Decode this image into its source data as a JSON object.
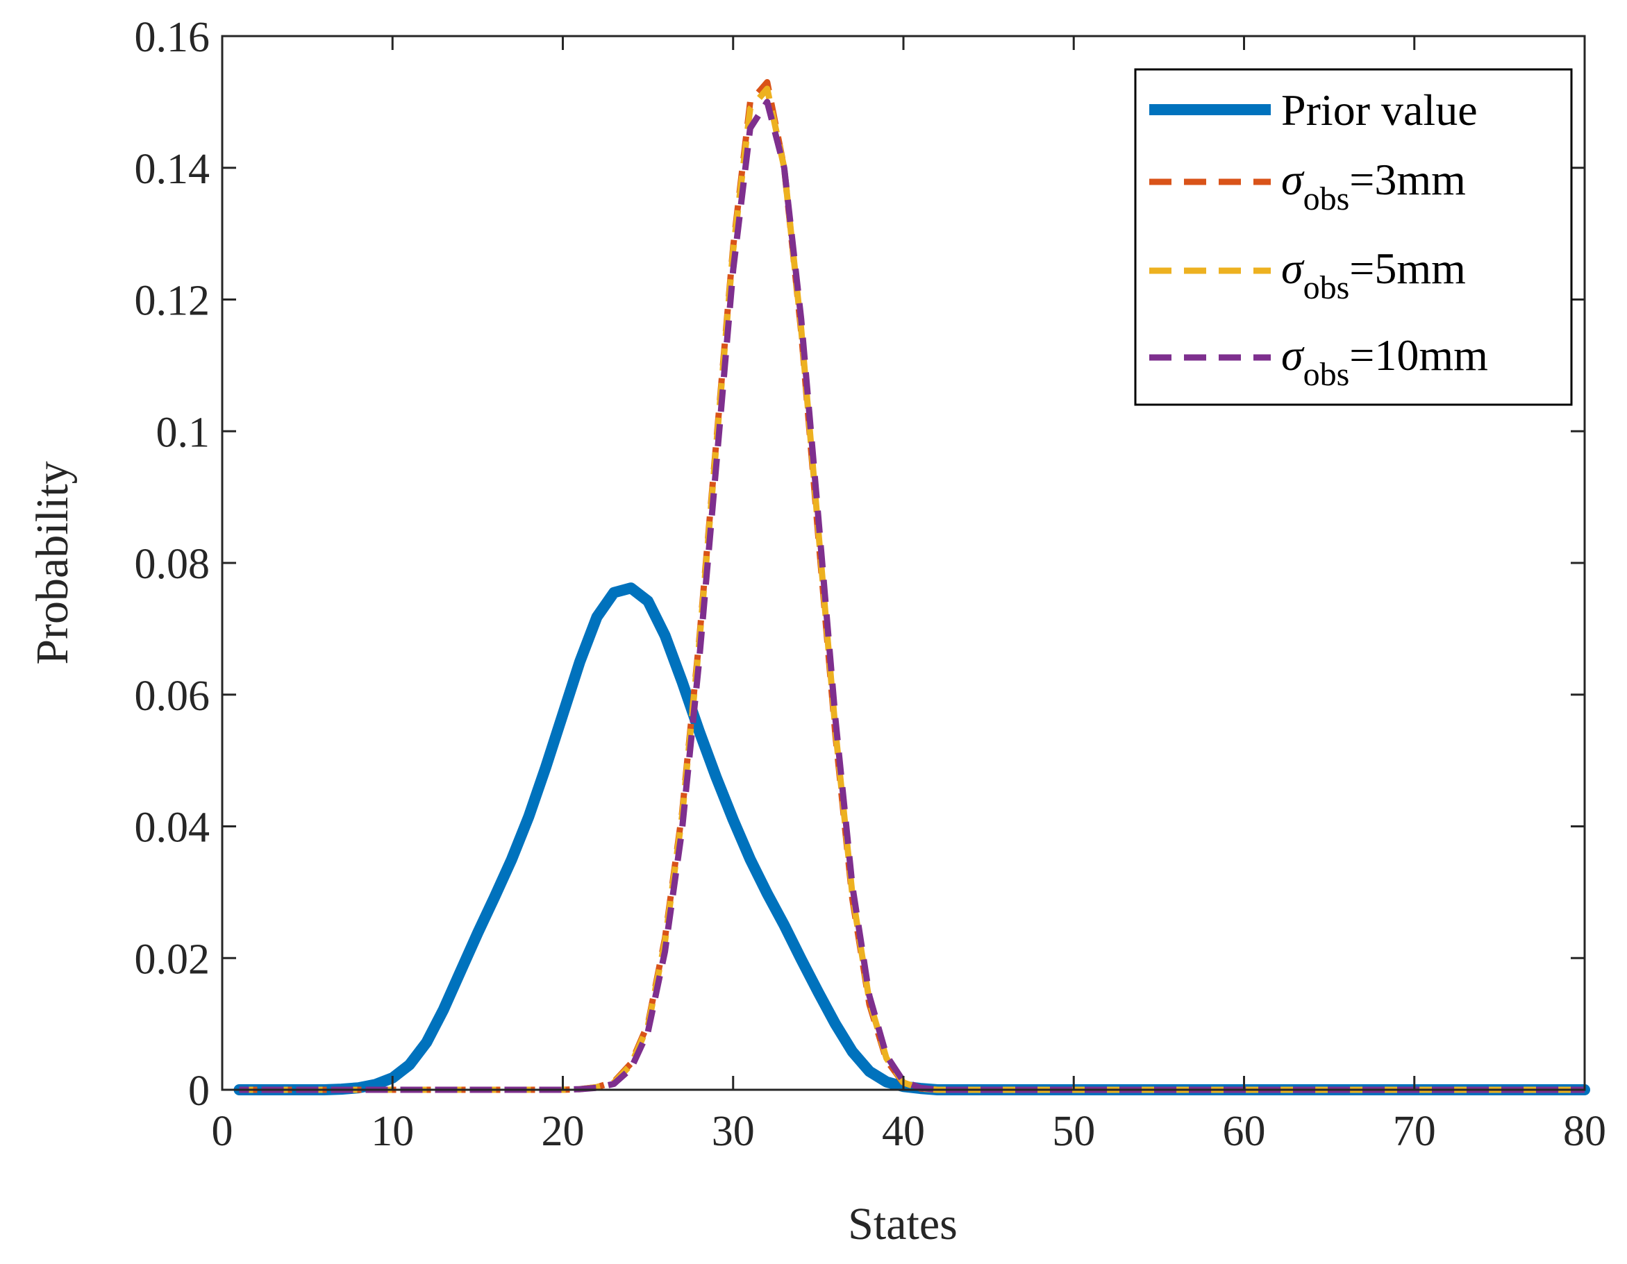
{
  "chart_data": {
    "type": "line",
    "xlabel": "States",
    "ylabel": "Probability",
    "xlim": [
      0,
      80
    ],
    "ylim": [
      0,
      0.16
    ],
    "xticks": [
      0,
      10,
      20,
      30,
      40,
      50,
      60,
      70,
      80
    ],
    "yticks": [
      0,
      0.02,
      0.04,
      0.06,
      0.08,
      0.1,
      0.12,
      0.14,
      0.16
    ],
    "xtick_labels": [
      "0",
      "10",
      "20",
      "30",
      "40",
      "50",
      "60",
      "70",
      "80"
    ],
    "ytick_labels": [
      "0",
      "0.02",
      "0.04",
      "0.06",
      "0.08",
      "0.1",
      "0.12",
      "0.14",
      "0.16"
    ],
    "legend_position": "top-right",
    "x": [
      1,
      2,
      3,
      4,
      5,
      6,
      7,
      8,
      9,
      10,
      11,
      12,
      13,
      14,
      15,
      16,
      17,
      18,
      19,
      20,
      21,
      22,
      23,
      24,
      25,
      26,
      27,
      28,
      29,
      30,
      31,
      32,
      33,
      34,
      35,
      36,
      37,
      38,
      39,
      40,
      41,
      42,
      43,
      44,
      45,
      46,
      47,
      48,
      49,
      50,
      51,
      52,
      53,
      54,
      55,
      56,
      57,
      58,
      59,
      60,
      61,
      62,
      63,
      64,
      65,
      66,
      67,
      68,
      69,
      70,
      71,
      72,
      73,
      74,
      75,
      76,
      77,
      78,
      79,
      80
    ],
    "series": [
      {
        "name": "Prior value",
        "color": "#0072BD",
        "style": "solid",
        "values": [
          0,
          0,
          0,
          0,
          0,
          0,
          0.0001,
          0.0003,
          0.0008,
          0.0018,
          0.0038,
          0.0072,
          0.0122,
          0.018,
          0.0238,
          0.0293,
          0.035,
          0.0415,
          0.049,
          0.057,
          0.065,
          0.0718,
          0.0755,
          0.0762,
          0.0742,
          0.069,
          0.062,
          0.0545,
          0.0475,
          0.041,
          0.035,
          0.0298,
          0.025,
          0.0198,
          0.0148,
          0.01,
          0.0058,
          0.0028,
          0.0012,
          0.0005,
          0.0002,
          0,
          0,
          0,
          0,
          0,
          0,
          0,
          0,
          0,
          0,
          0,
          0,
          0,
          0,
          0,
          0,
          0,
          0,
          0,
          0,
          0,
          0,
          0,
          0,
          0,
          0,
          0,
          0,
          0,
          0,
          0,
          0,
          0,
          0,
          0,
          0,
          0,
          0,
          0
        ]
      },
      {
        "name": "σ_obs=3mm",
        "label_main": "σ",
        "label_sub": "obs",
        "label_suffix": "=3mm",
        "color": "#D95319",
        "style": "dashed",
        "values": [
          0,
          0,
          0,
          0,
          0,
          0,
          0,
          0,
          0,
          0,
          0,
          0,
          0,
          0,
          0,
          0,
          0,
          0,
          0,
          0,
          0.0001,
          0.0004,
          0.0012,
          0.004,
          0.01,
          0.023,
          0.042,
          0.068,
          0.098,
          0.128,
          0.15,
          0.153,
          0.14,
          0.115,
          0.084,
          0.054,
          0.029,
          0.013,
          0.0045,
          0.001,
          0.0002,
          0,
          0,
          0,
          0,
          0,
          0,
          0,
          0,
          0,
          0,
          0,
          0,
          0,
          0,
          0,
          0,
          0,
          0,
          0,
          0,
          0,
          0,
          0,
          0,
          0,
          0,
          0,
          0,
          0,
          0,
          0,
          0,
          0,
          0,
          0,
          0,
          0,
          0,
          0
        ]
      },
      {
        "name": "σ_obs=5mm",
        "label_main": "σ",
        "label_sub": "obs",
        "label_suffix": "=5mm",
        "color": "#EDB120",
        "style": "dashed",
        "values": [
          0,
          0,
          0,
          0,
          0,
          0,
          0,
          0,
          0,
          0,
          0,
          0,
          0,
          0,
          0,
          0,
          0,
          0,
          0,
          0,
          0.0001,
          0.0004,
          0.0011,
          0.0038,
          0.0097,
          0.0225,
          0.0415,
          0.0675,
          0.0975,
          0.1275,
          0.149,
          0.152,
          0.14,
          0.1155,
          0.085,
          0.0548,
          0.0297,
          0.0135,
          0.0048,
          0.0011,
          0.0002,
          0,
          0,
          0,
          0,
          0,
          0,
          0,
          0,
          0,
          0,
          0,
          0,
          0,
          0,
          0,
          0,
          0,
          0,
          0,
          0,
          0,
          0,
          0,
          0,
          0,
          0,
          0,
          0,
          0,
          0,
          0,
          0,
          0,
          0,
          0,
          0,
          0,
          0,
          0
        ]
      },
      {
        "name": "σ_obs=10mm",
        "label_main": "σ",
        "label_sub": "obs",
        "label_suffix": "=10mm",
        "color": "#7E2F8E",
        "style": "dashed",
        "values": [
          0,
          0,
          0,
          0,
          0,
          0,
          0,
          0,
          0,
          0,
          0,
          0,
          0,
          0,
          0,
          0,
          0,
          0,
          0,
          0,
          0.0001,
          0.0003,
          0.0009,
          0.0032,
          0.0088,
          0.021,
          0.0395,
          0.065,
          0.0945,
          0.1245,
          0.146,
          0.15,
          0.14,
          0.117,
          0.087,
          0.0565,
          0.031,
          0.0143,
          0.0052,
          0.0013,
          0.0003,
          0,
          0,
          0,
          0,
          0,
          0,
          0,
          0,
          0,
          0,
          0,
          0,
          0,
          0,
          0,
          0,
          0,
          0,
          0,
          0,
          0,
          0,
          0,
          0,
          0,
          0,
          0,
          0,
          0,
          0,
          0,
          0,
          0,
          0,
          0,
          0,
          0,
          0,
          0
        ]
      }
    ]
  }
}
